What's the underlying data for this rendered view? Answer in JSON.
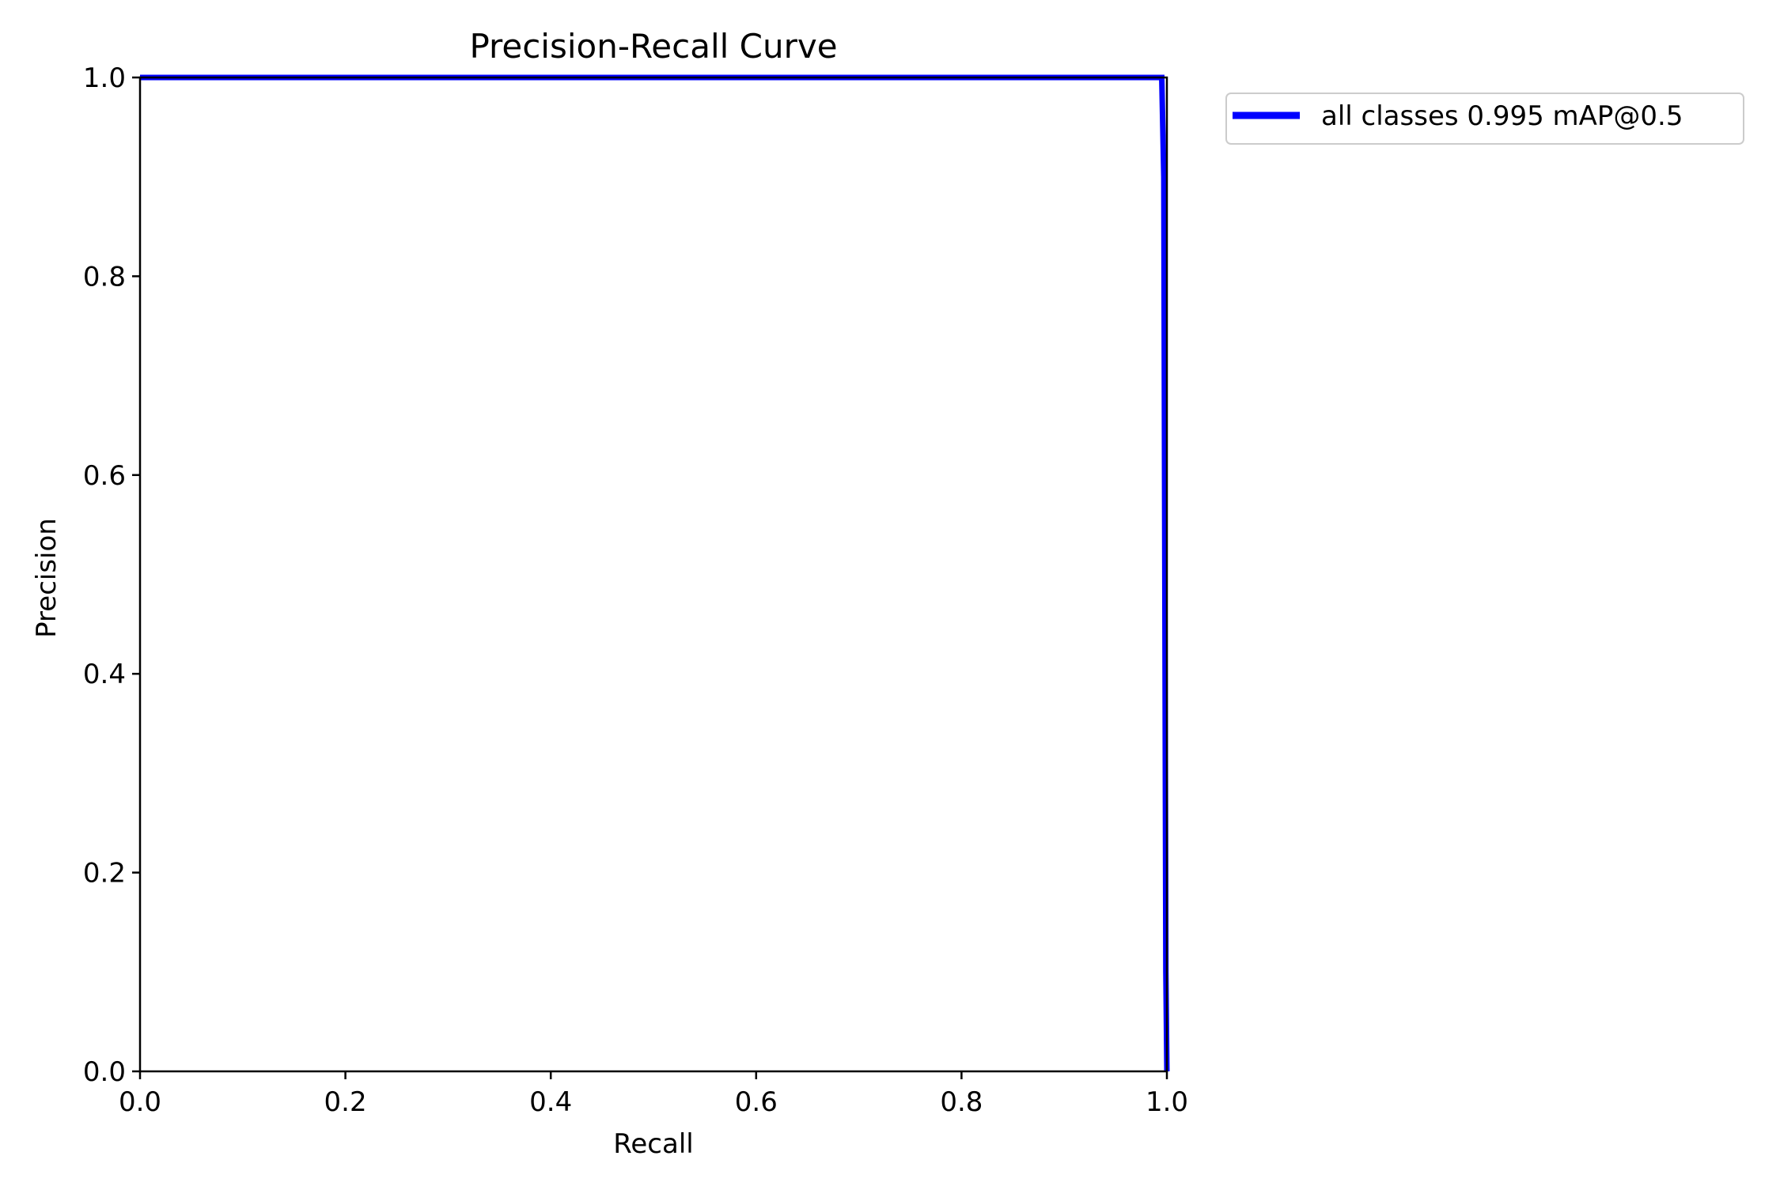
{
  "chart_data": {
    "type": "line",
    "title": "Precision-Recall Curve",
    "xlabel": "Recall",
    "ylabel": "Precision",
    "xlim": [
      0.0,
      1.0
    ],
    "ylim": [
      0.0,
      1.0
    ],
    "xticks": [
      "0.0",
      "0.2",
      "0.4",
      "0.6",
      "0.8",
      "1.0"
    ],
    "yticks": [
      "0.0",
      "0.2",
      "0.4",
      "0.6",
      "0.8",
      "1.0"
    ],
    "grid": false,
    "legend_position": "outside-top-right",
    "series": [
      {
        "name": "all classes 0.995 mAP@0.5",
        "color": "#0000ff",
        "x": [
          0.0,
          0.5,
          0.995,
          0.997,
          0.998,
          0.999,
          1.0
        ],
        "y": [
          1.0,
          1.0,
          1.0,
          0.9,
          0.5,
          0.1,
          0.0
        ]
      }
    ]
  }
}
